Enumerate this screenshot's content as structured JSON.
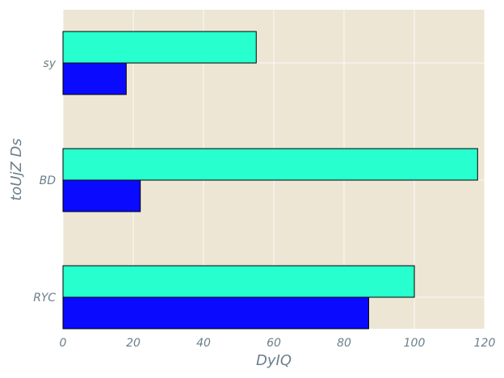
{
  "chart_data": {
    "type": "bar",
    "orientation": "horizontal",
    "categories": [
      "RYC",
      "BD",
      "sy"
    ],
    "series": [
      {
        "values": [
          87,
          22,
          18
        ],
        "color": "#0a0aff"
      },
      {
        "values": [
          100,
          118,
          55
        ],
        "color": "#27ffcf"
      }
    ],
    "xlabel": "DyIQ",
    "ylabel": "toUjZ Ds",
    "xlim": [
      0,
      120
    ],
    "xticks": [
      0,
      20,
      40,
      60,
      80,
      100,
      120
    ],
    "xtick_labels": [
      "0",
      "20",
      "40",
      "60",
      "80",
      "100",
      "120"
    ],
    "grid": true,
    "background_color": "#ede6d4",
    "tick_color": "#6b7f8a"
  }
}
